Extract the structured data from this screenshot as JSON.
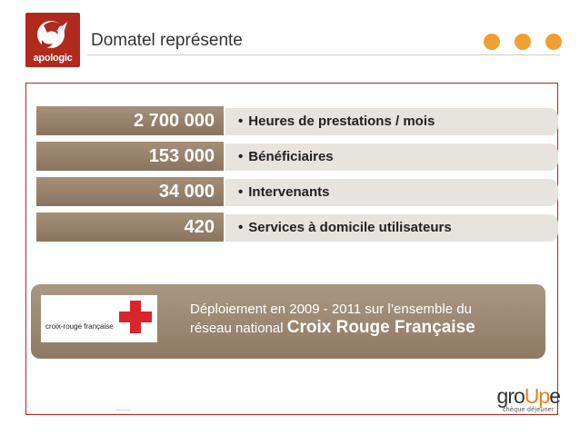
{
  "header": {
    "logo_text": "apologic",
    "title": "Domatel représente"
  },
  "stats": [
    {
      "value": "2 700 000",
      "label": "Heures de prestations / mois"
    },
    {
      "value": "153 000",
      "label": "Bénéficiaires"
    },
    {
      "value": "34 000",
      "label": "Intervenants"
    },
    {
      "value": "420",
      "label": "Services à domicile utilisateurs"
    }
  ],
  "bullet": "•",
  "banner": {
    "partner_logo_text": "croix-rouge française",
    "line1": "Déploiement en 2009 - 2011 sur l’ensemble du",
    "line2_prefix": "réseau national ",
    "line2_strong": "Croix Rouge Française"
  },
  "footer": {
    "brand_pre": "gro",
    "brand_up": "Up",
    "brand_post": "e",
    "tagline": "chèque déjeuner"
  },
  "colors": {
    "accent_red": "#b02a1e",
    "dot_orange": "#f0a030",
    "stat_brown": "#8a7460",
    "cross_red": "#d8252c"
  }
}
